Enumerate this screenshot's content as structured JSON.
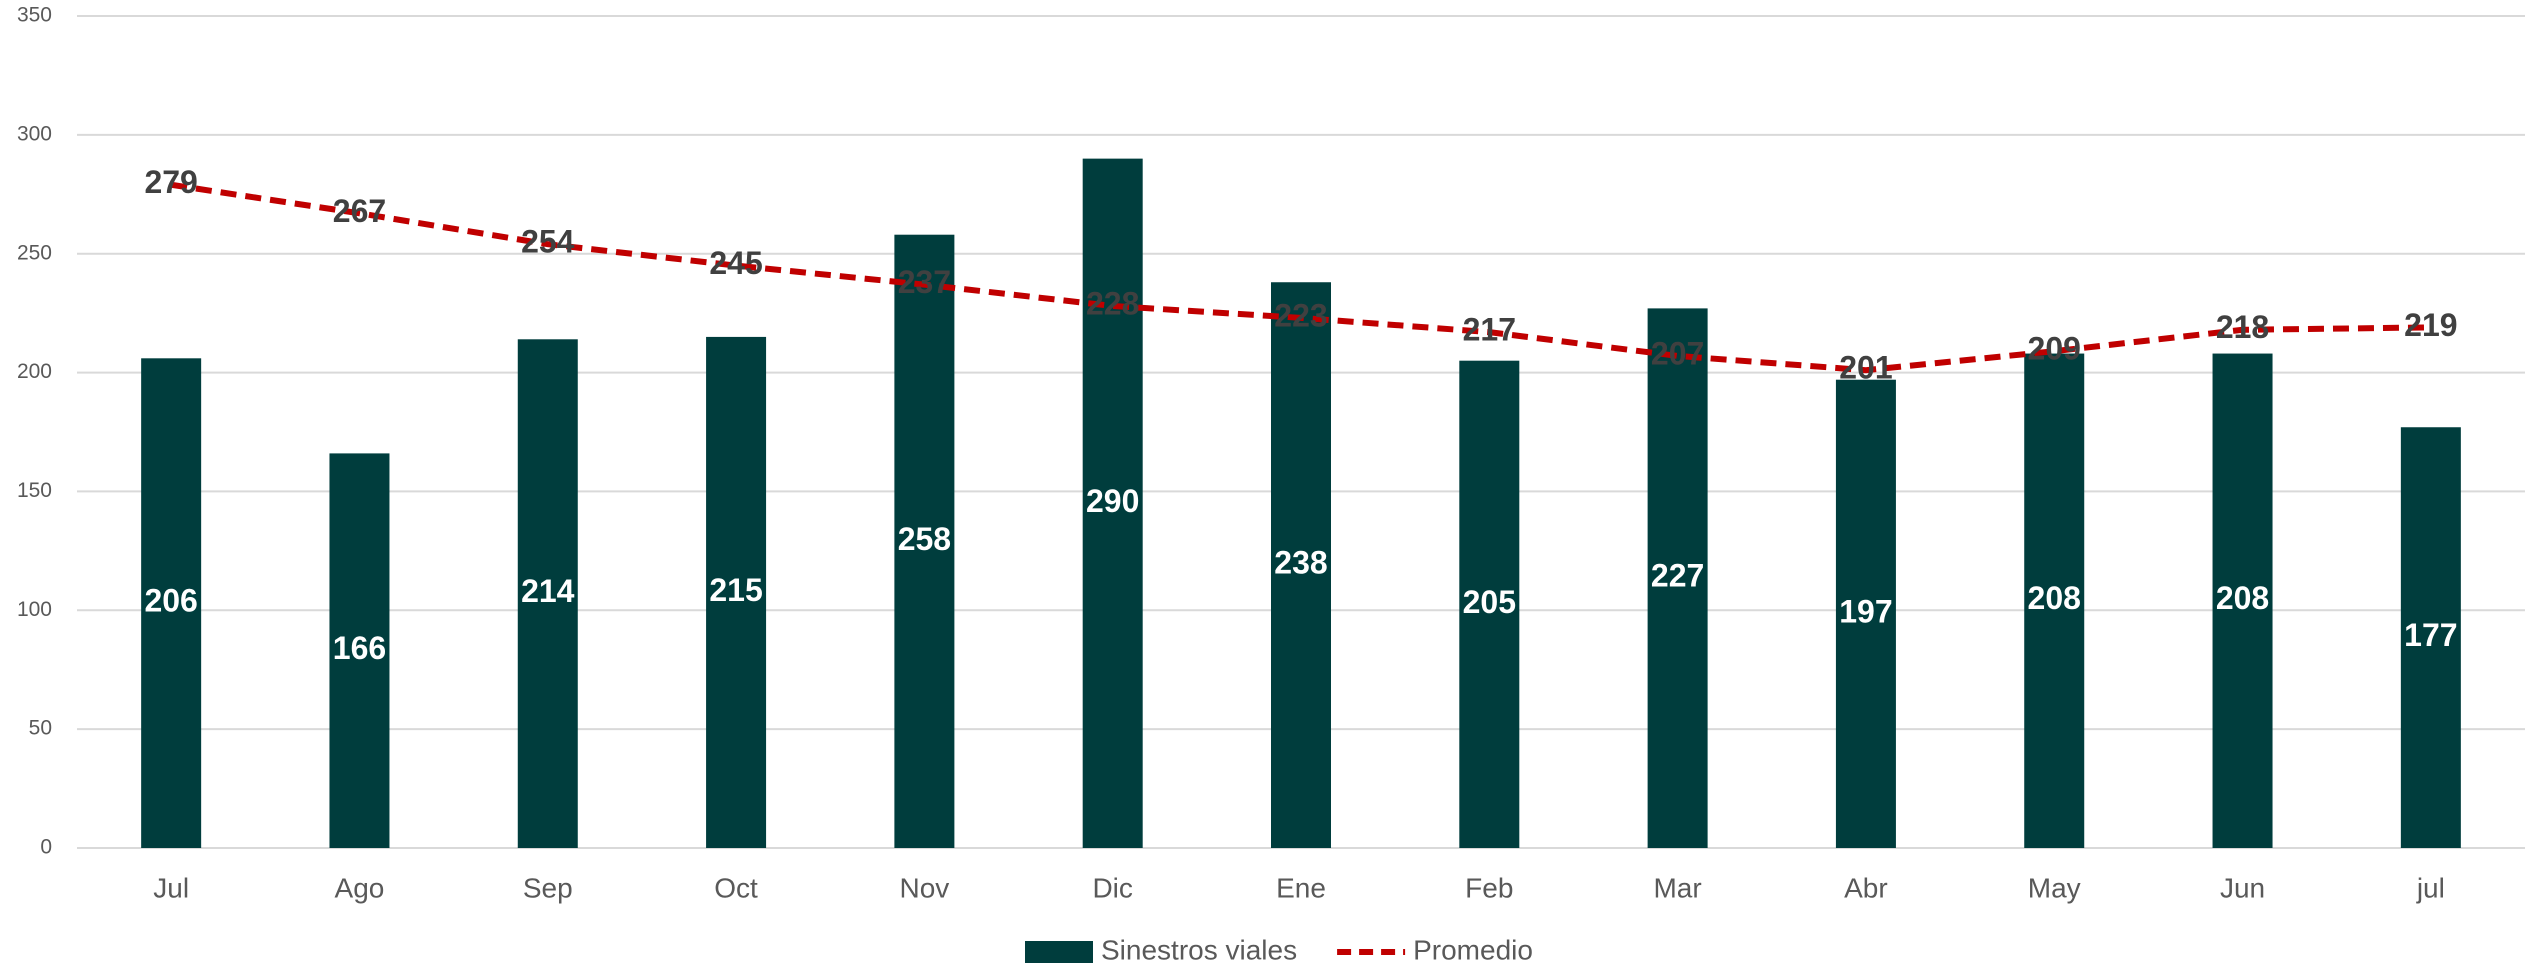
{
  "chart_data": {
    "type": "bar",
    "categories": [
      "Jul",
      "Ago",
      "Sep",
      "Oct",
      "Nov",
      "Dic",
      "Ene",
      "Feb",
      "Mar",
      "Abr",
      "May",
      "Jun",
      "jul"
    ],
    "series": [
      {
        "name": "Sinestros viales",
        "type": "bar",
        "color": "#003d3d",
        "values": [
          206,
          166,
          214,
          215,
          258,
          290,
          238,
          205,
          227,
          197,
          208,
          208,
          177
        ]
      },
      {
        "name": "Promedio",
        "type": "line",
        "color": "#c00000",
        "values": [
          279,
          267,
          254,
          245,
          237,
          228,
          223,
          217,
          207,
          201,
          209,
          218,
          219
        ]
      }
    ],
    "ylim": [
      0,
      350
    ],
    "yticks": [
      0,
      50,
      100,
      150,
      200,
      250,
      300,
      350
    ],
    "grid": true,
    "legend": "bottom"
  }
}
